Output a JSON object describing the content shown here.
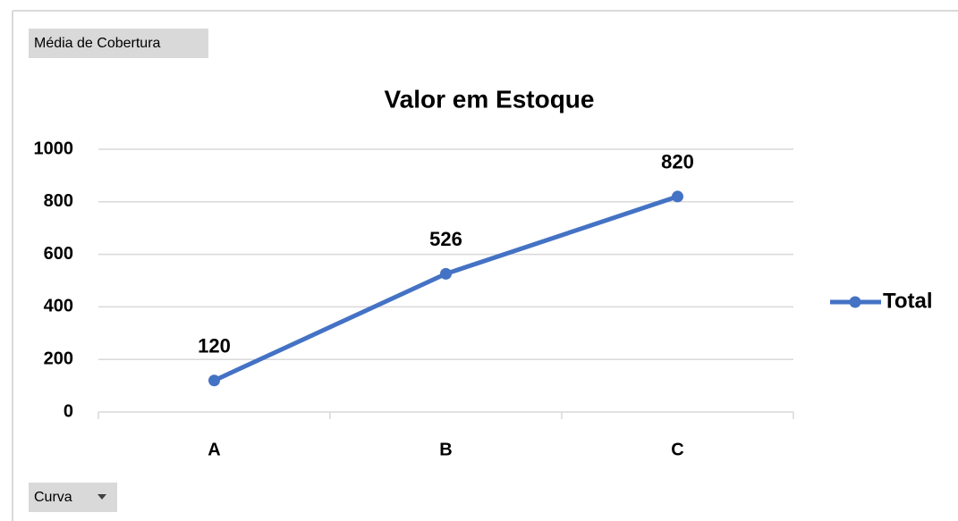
{
  "chart_data": {
    "type": "line",
    "title": "Valor em Estoque",
    "value_field_button": "Média de Cobertura",
    "axis_field_button": "Curva",
    "categories": [
      "A",
      "B",
      "C"
    ],
    "series": [
      {
        "name": "Total",
        "color": "#4472c4",
        "values": [
          120,
          526,
          820
        ]
      }
    ],
    "ylim": [
      0,
      1000
    ],
    "yticks": [
      0,
      200,
      400,
      600,
      800,
      1000
    ],
    "grid": true,
    "data_labels": true,
    "legend": "right"
  }
}
